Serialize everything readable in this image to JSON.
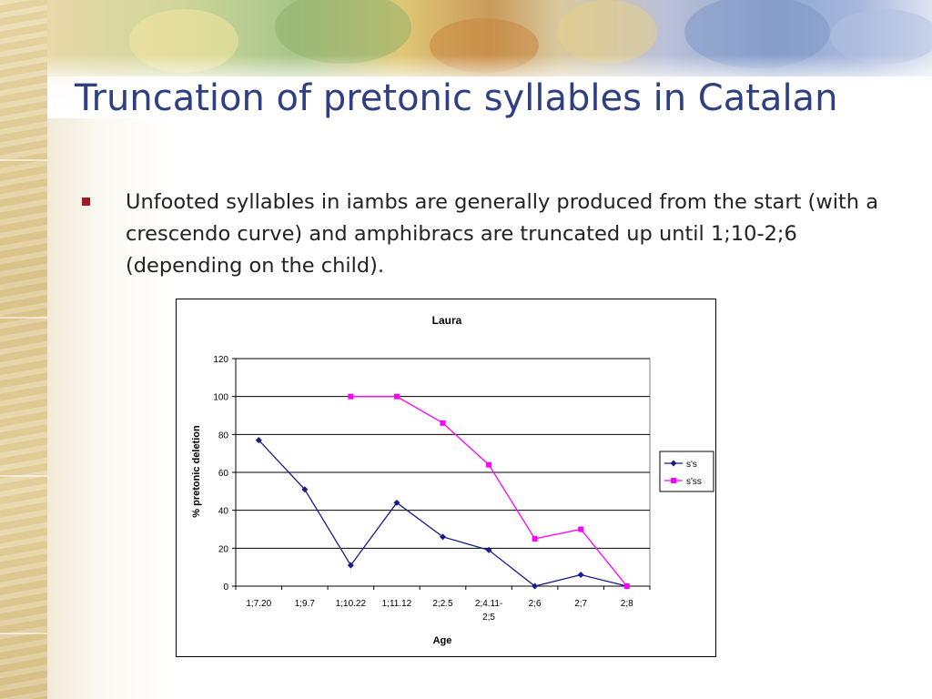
{
  "slide": {
    "title": "Truncation of pretonic syllables in Catalan",
    "bullets": [
      "Unfooted syllables in iambs are generally produced from the start (with a crescendo curve) and amphibracs are truncated up until 1;10-2;6 (depending on the child)."
    ],
    "bullet_color": "#9b1c22",
    "title_color": "#2e3f82"
  },
  "chart_data": {
    "type": "line",
    "title": "Laura",
    "xlabel": "Age",
    "ylabel": "% pretonic deletion",
    "categories": [
      "1;7.20",
      "1;9.7",
      "1;10.22",
      "1;11.12",
      "2;2.5",
      "2;4.11-2;5",
      "2;6",
      "2;7",
      "2;8"
    ],
    "category_lines": [
      [
        "1;7.20"
      ],
      [
        "1;9.7"
      ],
      [
        "1;10.22"
      ],
      [
        "1;11.12"
      ],
      [
        "2;2.5"
      ],
      [
        "2;4.11-",
        "2;5"
      ],
      [
        "2;6"
      ],
      [
        "2;7"
      ],
      [
        "2;8"
      ]
    ],
    "ylim": [
      0,
      120
    ],
    "yticks": [
      0,
      20,
      40,
      60,
      80,
      100,
      120
    ],
    "grid": true,
    "legend": "right",
    "series": [
      {
        "name": "s's",
        "color": "#1a1a8a",
        "marker": "diamond",
        "values": [
          77,
          51,
          11,
          44,
          26,
          19,
          0,
          6,
          0
        ]
      },
      {
        "name": "s'ss",
        "color": "#ff00ff",
        "marker": "square",
        "values": [
          null,
          null,
          100,
          100,
          86,
          64,
          25,
          30,
          0
        ]
      }
    ]
  }
}
